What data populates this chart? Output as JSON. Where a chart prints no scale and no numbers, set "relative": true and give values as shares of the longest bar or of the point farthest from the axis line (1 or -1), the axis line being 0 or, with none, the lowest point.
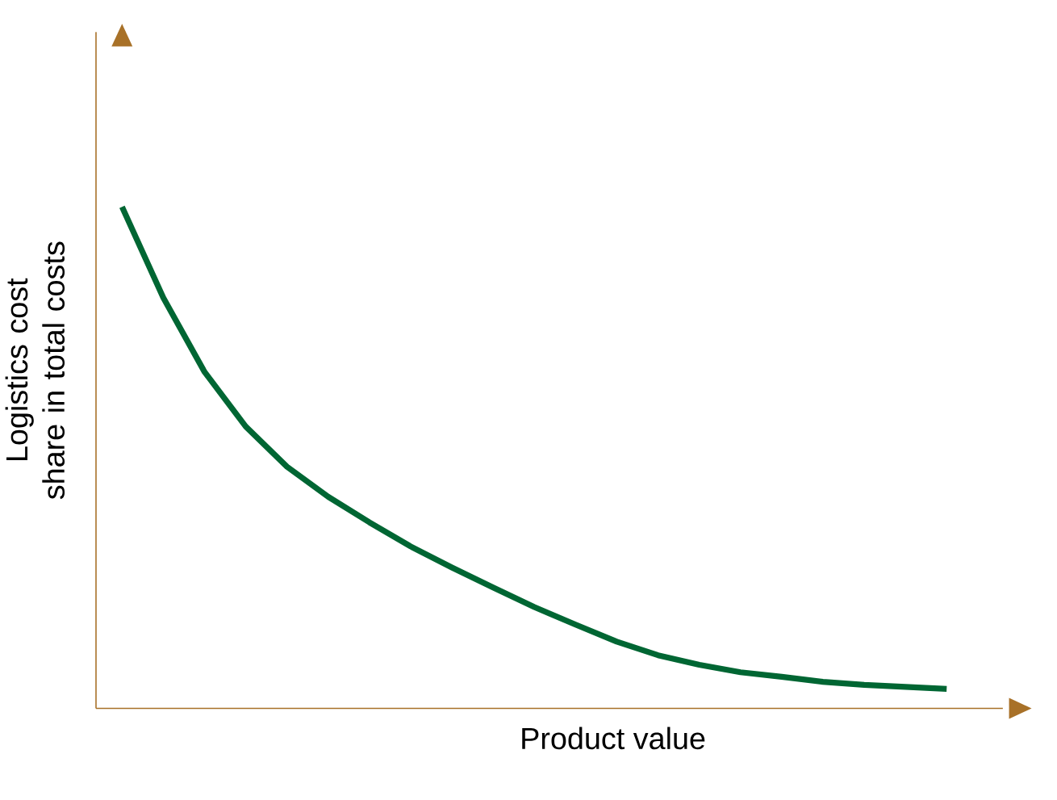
{
  "chart_data": {
    "type": "line",
    "relative": true,
    "xlabel": "Product value",
    "ylabel": "Logistics cost share in total costs",
    "color": "#006633",
    "categories": [
      null,
      null,
      null,
      null,
      null,
      null,
      null,
      null,
      null,
      null,
      null,
      null,
      null,
      null,
      null,
      null,
      null,
      null,
      null,
      null,
      null
    ],
    "values": [
      1,
      0.819,
      0.671,
      0.562,
      0.482,
      0.422,
      0.371,
      0.323,
      0.281,
      0.241,
      0.202,
      0.167,
      0.133,
      0.106,
      0.087,
      0.072,
      0.063,
      0.053,
      0.047,
      0.043,
      0.039
    ]
  }
}
